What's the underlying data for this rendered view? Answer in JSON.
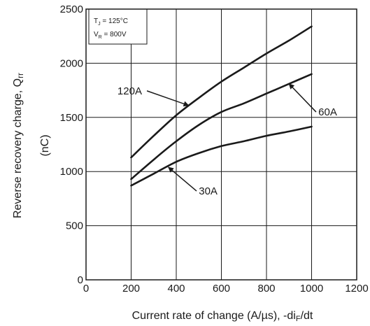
{
  "chart_data": {
    "type": "line",
    "xlabel_prefix": "Current rate of change (A/µs), -di",
    "xlabel_sub": "F",
    "xlabel_suffix": "/dt",
    "ylabel_line1_main": "Reverse recovery charge, Q",
    "ylabel_line1_sub": "rr",
    "ylabel_line2": "(nC)",
    "xlim": [
      0,
      1200
    ],
    "ylim": [
      0,
      2500
    ],
    "x_ticks": [
      0,
      200,
      400,
      600,
      800,
      1000,
      1200
    ],
    "y_ticks": [
      0,
      500,
      1000,
      1500,
      2000,
      2500
    ],
    "grid": true,
    "conditions": {
      "tj_main": "T",
      "tj_sub": "J",
      "tj_value": " = 125°C",
      "vr_main": "V",
      "vr_sub": "R",
      "vr_value": " = 800V"
    },
    "series": [
      {
        "name": "120A",
        "x": [
          200,
          300,
          400,
          500,
          600,
          700,
          800,
          900,
          1000
        ],
        "y": [
          1130,
          1330,
          1520,
          1680,
          1830,
          1960,
          2090,
          2210,
          2340
        ]
      },
      {
        "name": "60A",
        "x": [
          200,
          300,
          400,
          500,
          600,
          700,
          800,
          900,
          1000
        ],
        "y": [
          930,
          1110,
          1280,
          1430,
          1550,
          1630,
          1720,
          1810,
          1900
        ]
      },
      {
        "name": "30A",
        "x": [
          200,
          300,
          400,
          500,
          600,
          700,
          800,
          900,
          1000
        ],
        "y": [
          870,
          980,
          1090,
          1170,
          1235,
          1280,
          1330,
          1370,
          1415
        ]
      }
    ],
    "label_callouts": [
      {
        "series": 0,
        "anchor": "end",
        "text_x": 248,
        "text_y": 1745,
        "line_x": 270,
        "line_y": 1745,
        "point_x": 455,
        "point_y": 1610
      },
      {
        "series": 1,
        "anchor": "start",
        "text_x": 1030,
        "text_y": 1550,
        "line_x": 1020,
        "line_y": 1550,
        "point_x": 900,
        "point_y": 1810
      },
      {
        "series": 2,
        "anchor": "start",
        "text_x": 500,
        "text_y": 820,
        "line_x": 490,
        "line_y": 820,
        "point_x": 365,
        "point_y": 1040
      }
    ]
  }
}
